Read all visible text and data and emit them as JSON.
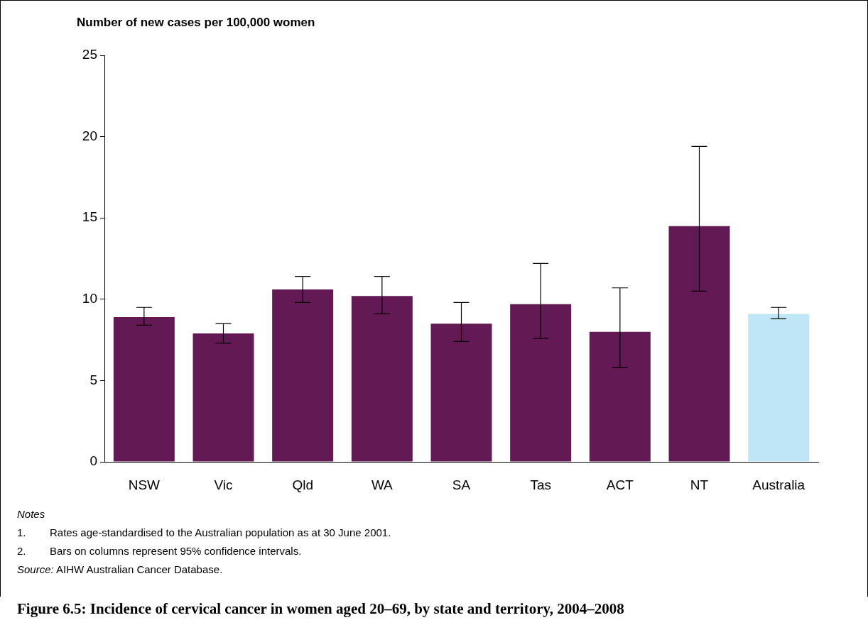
{
  "chart_data": {
    "type": "bar",
    "title": "Figure 6.5: Incidence of cervical cancer in women aged 20–69, by state and territory, 2004–2008",
    "ylabel": "Number of new cases per 100,000 women",
    "categories": [
      "NSW",
      "Vic",
      "Qld",
      "WA",
      "SA",
      "Tas",
      "ACT",
      "NT",
      "Australia"
    ],
    "values": [
      8.9,
      7.9,
      10.6,
      10.2,
      8.5,
      9.7,
      8.0,
      14.5,
      9.1
    ],
    "colors": [
      "#621954",
      "#621954",
      "#621954",
      "#621954",
      "#621954",
      "#621954",
      "#621954",
      "#621954",
      "#bfe6f7"
    ],
    "errors": [
      [
        8.4,
        9.5
      ],
      [
        7.3,
        8.5
      ],
      [
        9.8,
        11.4
      ],
      [
        9.1,
        11.4
      ],
      [
        7.4,
        9.8
      ],
      [
        7.6,
        12.2
      ],
      [
        5.8,
        10.7
      ],
      [
        10.5,
        19.4
      ],
      [
        8.8,
        9.5
      ]
    ],
    "ylim": [
      0,
      25
    ],
    "yticks": [
      0,
      5,
      10,
      15,
      20,
      25
    ],
    "annotations": [
      "Notes",
      "1. Rates age-standardised to the Australian population as at 30 June 2001.",
      "2. Bars on columns represent 95% confidence intervals.",
      "Source: AIHW Australian Cancer Database."
    ]
  }
}
